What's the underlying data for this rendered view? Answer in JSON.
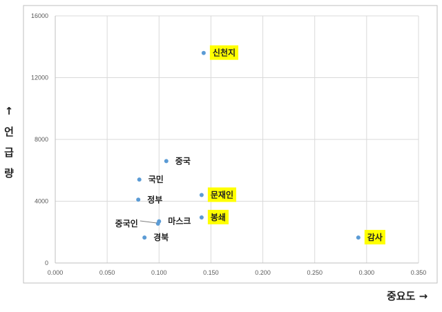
{
  "chart_data": {
    "type": "scatter",
    "title": "",
    "xlabel": "중요도 →",
    "ylabel": "↑ 언 급 량",
    "xlim": [
      0,
      0.35
    ],
    "ylim": [
      0,
      16000
    ],
    "x_ticks": [
      "0.000",
      "0.050",
      "0.100",
      "0.150",
      "0.200",
      "0.250",
      "0.300",
      "0.350"
    ],
    "y_ticks": [
      "0",
      "4000",
      "8000",
      "12000",
      "16000"
    ],
    "grid": true,
    "marker_color": "#5b9bd5",
    "highlight_color": "#ffff00",
    "points": [
      {
        "label": "신천지",
        "x": 0.143,
        "y": 13600,
        "highlight": true
      },
      {
        "label": "중국",
        "x": 0.107,
        "y": 6600,
        "highlight": false
      },
      {
        "label": "국민",
        "x": 0.081,
        "y": 5400,
        "highlight": false
      },
      {
        "label": "문재인",
        "x": 0.141,
        "y": 4400,
        "highlight": true
      },
      {
        "label": "정부",
        "x": 0.08,
        "y": 4100,
        "highlight": false
      },
      {
        "label": "봉쇄",
        "x": 0.141,
        "y": 2950,
        "highlight": true
      },
      {
        "label": "마스크",
        "x": 0.1,
        "y": 2700,
        "highlight": false
      },
      {
        "label": "중국인",
        "x": 0.099,
        "y": 2550,
        "highlight": false
      },
      {
        "label": "경북",
        "x": 0.086,
        "y": 1650,
        "highlight": false
      },
      {
        "label": "감사",
        "x": 0.292,
        "y": 1650,
        "highlight": true
      }
    ]
  }
}
